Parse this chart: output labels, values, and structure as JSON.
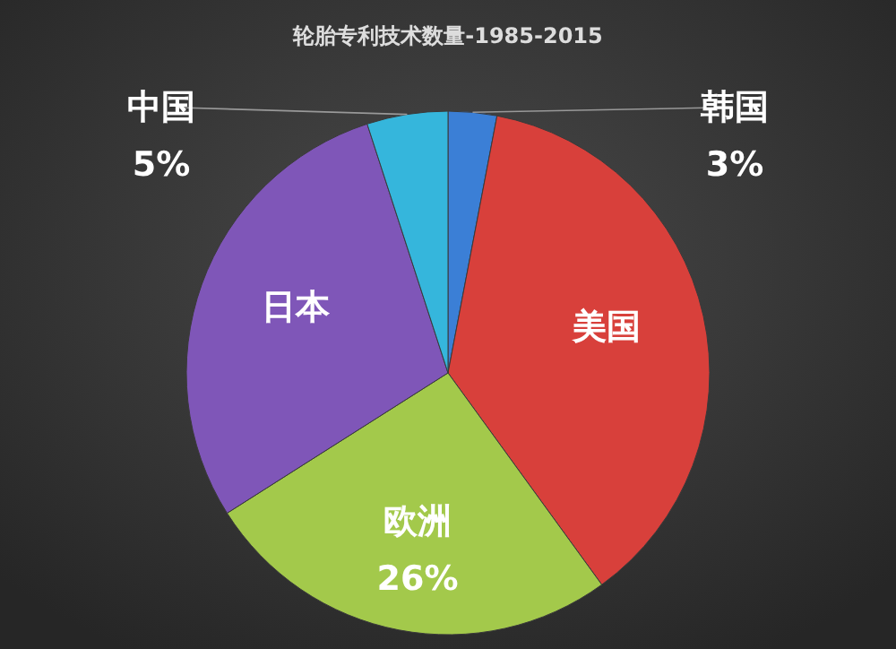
{
  "chart_data": {
    "type": "pie",
    "title": "轮胎专利技术数量-1985-2015",
    "categories": [
      "韩国",
      "美国",
      "欧洲",
      "日本",
      "中国"
    ],
    "values": [
      3,
      37,
      26,
      29,
      5
    ],
    "colors": [
      "#3b7fd6",
      "#d8403b",
      "#a3c94b",
      "#7f56b8",
      "#35b6dc"
    ],
    "value_labels": [
      "3%",
      null,
      "26%",
      null,
      "5%"
    ]
  }
}
